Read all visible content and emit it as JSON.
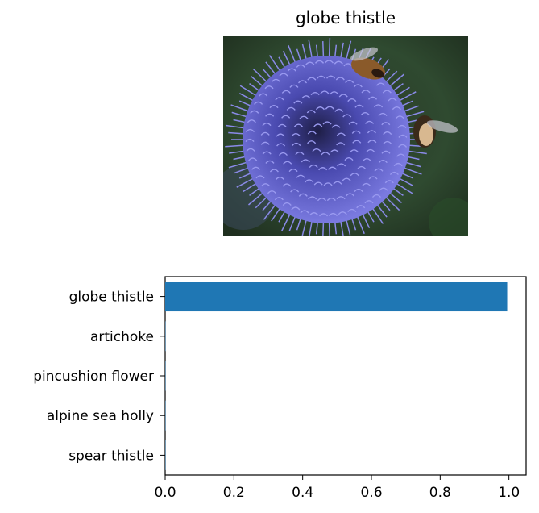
{
  "title": "globe thistle",
  "photo": {
    "subject": "globe thistle flower head with bees",
    "colors": {
      "flower": "#6a6ad8",
      "background": "#2f4a30",
      "bee": "#8a5a2a"
    }
  },
  "chart_data": {
    "type": "bar",
    "orientation": "horizontal",
    "categories": [
      "globe thistle",
      "artichoke",
      "pincushion flower",
      "alpine sea holly",
      "spear thistle"
    ],
    "values": [
      0.995,
      0.001,
      0.001,
      0.001,
      0.001
    ],
    "xlim": [
      0,
      1.05
    ],
    "xticks": [
      "0.0",
      "0.2",
      "0.4",
      "0.6",
      "0.8",
      "1.0"
    ],
    "bar_color": "#1f77b4",
    "grid": false
  }
}
